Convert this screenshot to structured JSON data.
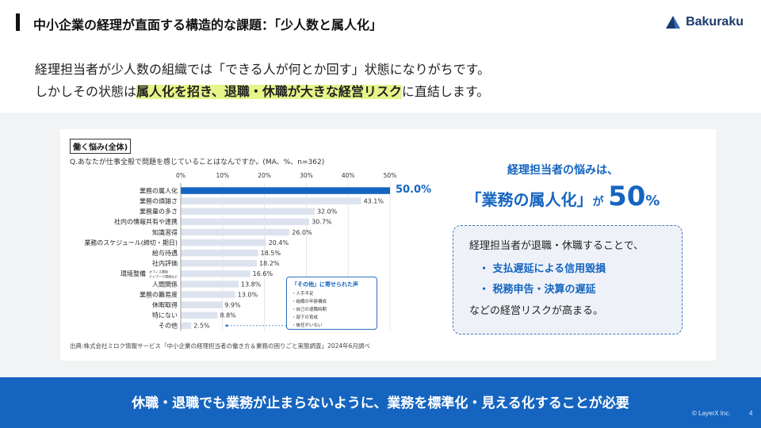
{
  "header": {
    "title": "中小企業の経理が直面する構造的な課題：「少人数と属人化」",
    "logo_text": "Bakuraku",
    "logo_icon": "bakuraku-logo-icon"
  },
  "lead": {
    "line1": "経理担当者が少人数の組織では「できる人が何とか回す」状態になりがちです。",
    "line2_pre": "しかしその状態は",
    "line2_highlight": "属人化を招き、退職・休職が大きな経営リスク",
    "line2_post": "に直結します。",
    "highlight_color": "#e6f48a"
  },
  "chart_card": {
    "tag": "働く悩み(全体)",
    "question": "Q.あなたが仕事全般で問題を感じていることはなんですか。(MA、%、n=362)",
    "source": "出典:株式会社ミロク情報サービス「中小企業の経理担当者の働き方＆業務の困りごと実態調査」2024年6月調べ",
    "highlight_value_label": "50.0%",
    "other_box": {
      "title": "「その他」に寄せられた声",
      "items": [
        "・人手不足",
        "・組織の年齢構成",
        "・自己の退職時期",
        "・部下の育成",
        "・後任がいない"
      ]
    }
  },
  "chart_data": {
    "type": "bar",
    "orientation": "horizontal",
    "categories": [
      "業務の属人化",
      "業務の煩雑さ",
      "業務量の多さ",
      "社内の情報共有や連携",
      "知識習得",
      "業務のスケジュール(締切・期日)",
      "給与待遇",
      "社内評価",
      "環境整備",
      "人間関係",
      "業務の難易度",
      "休暇取得",
      "特にない",
      "その他"
    ],
    "category_note": {
      "環境整備": [
        "オフィス環境",
        "テレワーク環境など"
      ]
    },
    "values": [
      50.0,
      43.1,
      32.0,
      30.7,
      26.0,
      20.4,
      18.5,
      18.2,
      16.6,
      13.8,
      13.0,
      9.9,
      8.8,
      2.5
    ],
    "value_labels": [
      "",
      "43.1%",
      "32.0%",
      "30.7%",
      "26.0%",
      "20.4%",
      "18.5%",
      "18.2%",
      "16.6%",
      "13.8%",
      "13.0%",
      "9.9%",
      "8.8%",
      "2.5%"
    ],
    "x_ticks": [
      "0%",
      "10%",
      "20%",
      "30%",
      "40%",
      "50%"
    ],
    "xlim": [
      0,
      50
    ],
    "highlight_index": 0,
    "colors": {
      "highlight": "#1565c0",
      "bar": "#dde3ee",
      "grid": "#d6d6d6"
    },
    "grid": true
  },
  "summary": {
    "line1": "経理担当者の悩みは、",
    "quote_open": "「",
    "subject": "業務の属人化",
    "quote_close": "」",
    "particle": "が",
    "number": "50",
    "unit": "%"
  },
  "risk_box": {
    "intro": "経理担当者が退職・休職することで、",
    "bullet1": "・ 支払遅延による信用毀損",
    "bullet2": "・ 税務申告・決算の遅延",
    "outro": "などの経営リスクが高まる。"
  },
  "footer": {
    "message": "休職・退職でも業務が止まらないように、業務を標準化・見える化することが必要",
    "copyright": "© LayerX Inc.",
    "page_number": "4",
    "bg_color": "#1565c0"
  }
}
